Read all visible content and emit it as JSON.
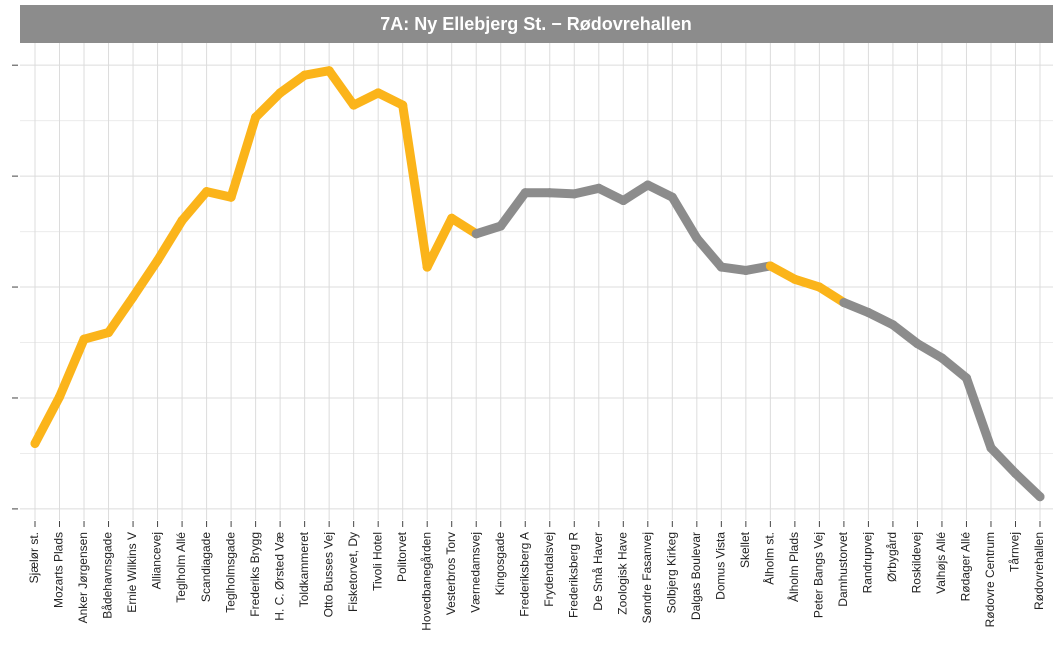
{
  "chart_data": {
    "type": "line",
    "title": "7A: Ny Ellebjerg St. − Rødovrehallen",
    "categories": [
      "Sjælør st.",
      "Mozarts Plads",
      "Anker Jørgensen",
      "Bådehavnsgade",
      "Ernie Wilkins V",
      "Alliancevej",
      "Teglholm Allé",
      "Scandiagade",
      "Teglholmsgade",
      "Frederiks Brygg",
      "H. C. Ørsted Væ",
      "Toldkammeret",
      "Otto Busses Vej",
      "Fisketorvet, Dy",
      "Tivoli Hotel",
      "Politorvet",
      "Hovedbanegården",
      "Vesterbros Torv",
      "Værnedamsvej",
      "Kingosgade",
      "Frederiksberg A",
      "Frydendalsvej",
      "Frederiksberg R",
      "De Små Haver",
      "Zoologisk Have",
      "Søndre Fasanvej",
      "Solbjerg Kirkeg",
      "Dalgas Boulevar",
      "Domus Vista",
      "Skellet",
      "Ålholm st.",
      "Ålholm Plads",
      "Peter Bangs Vej",
      "Damhustorvet",
      "Randrupvej",
      "Ørbygård",
      "Roskildevej",
      "Valhøjs Allé",
      "Rødager Allé",
      "Rødovre Centrum",
      "Tårnvej",
      "Rødovrehallen"
    ],
    "values": [
      0.59,
      1.01,
      1.53,
      1.59,
      1.91,
      2.24,
      2.6,
      2.86,
      2.81,
      3.53,
      3.75,
      3.91,
      3.95,
      3.64,
      3.75,
      3.64,
      2.18,
      2.62,
      2.48,
      2.55,
      2.85,
      2.85,
      2.84,
      2.89,
      2.78,
      2.92,
      2.81,
      2.44,
      2.18,
      2.15,
      2.19,
      2.07,
      2.0,
      1.86,
      1.77,
      1.66,
      1.49,
      1.36,
      1.18,
      0.55,
      0.32,
      0.11
    ],
    "colors": [
      "#fbb41a",
      "#fbb41a",
      "#fbb41a",
      "#fbb41a",
      "#fbb41a",
      "#fbb41a",
      "#fbb41a",
      "#fbb41a",
      "#fbb41a",
      "#fbb41a",
      "#fbb41a",
      "#fbb41a",
      "#fbb41a",
      "#fbb41a",
      "#fbb41a",
      "#fbb41a",
      "#fbb41a",
      "#fbb41a",
      "#8c8c8c",
      "#8c8c8c",
      "#8c8c8c",
      "#8c8c8c",
      "#8c8c8c",
      "#8c8c8c",
      "#8c8c8c",
      "#8c8c8c",
      "#8c8c8c",
      "#8c8c8c",
      "#8c8c8c",
      "#8c8c8c",
      "#fbb41a",
      "#fbb41a",
      "#fbb41a",
      "#8c8c8c",
      "#8c8c8c",
      "#8c8c8c",
      "#8c8c8c",
      "#8c8c8c",
      "#8c8c8c",
      "#8c8c8c",
      "#8c8c8c",
      "#8c8c8c"
    ],
    "ylim": [
      -0.1,
      4.2
    ],
    "yticks": [
      0,
      1,
      2,
      3,
      4
    ],
    "grid": true
  }
}
